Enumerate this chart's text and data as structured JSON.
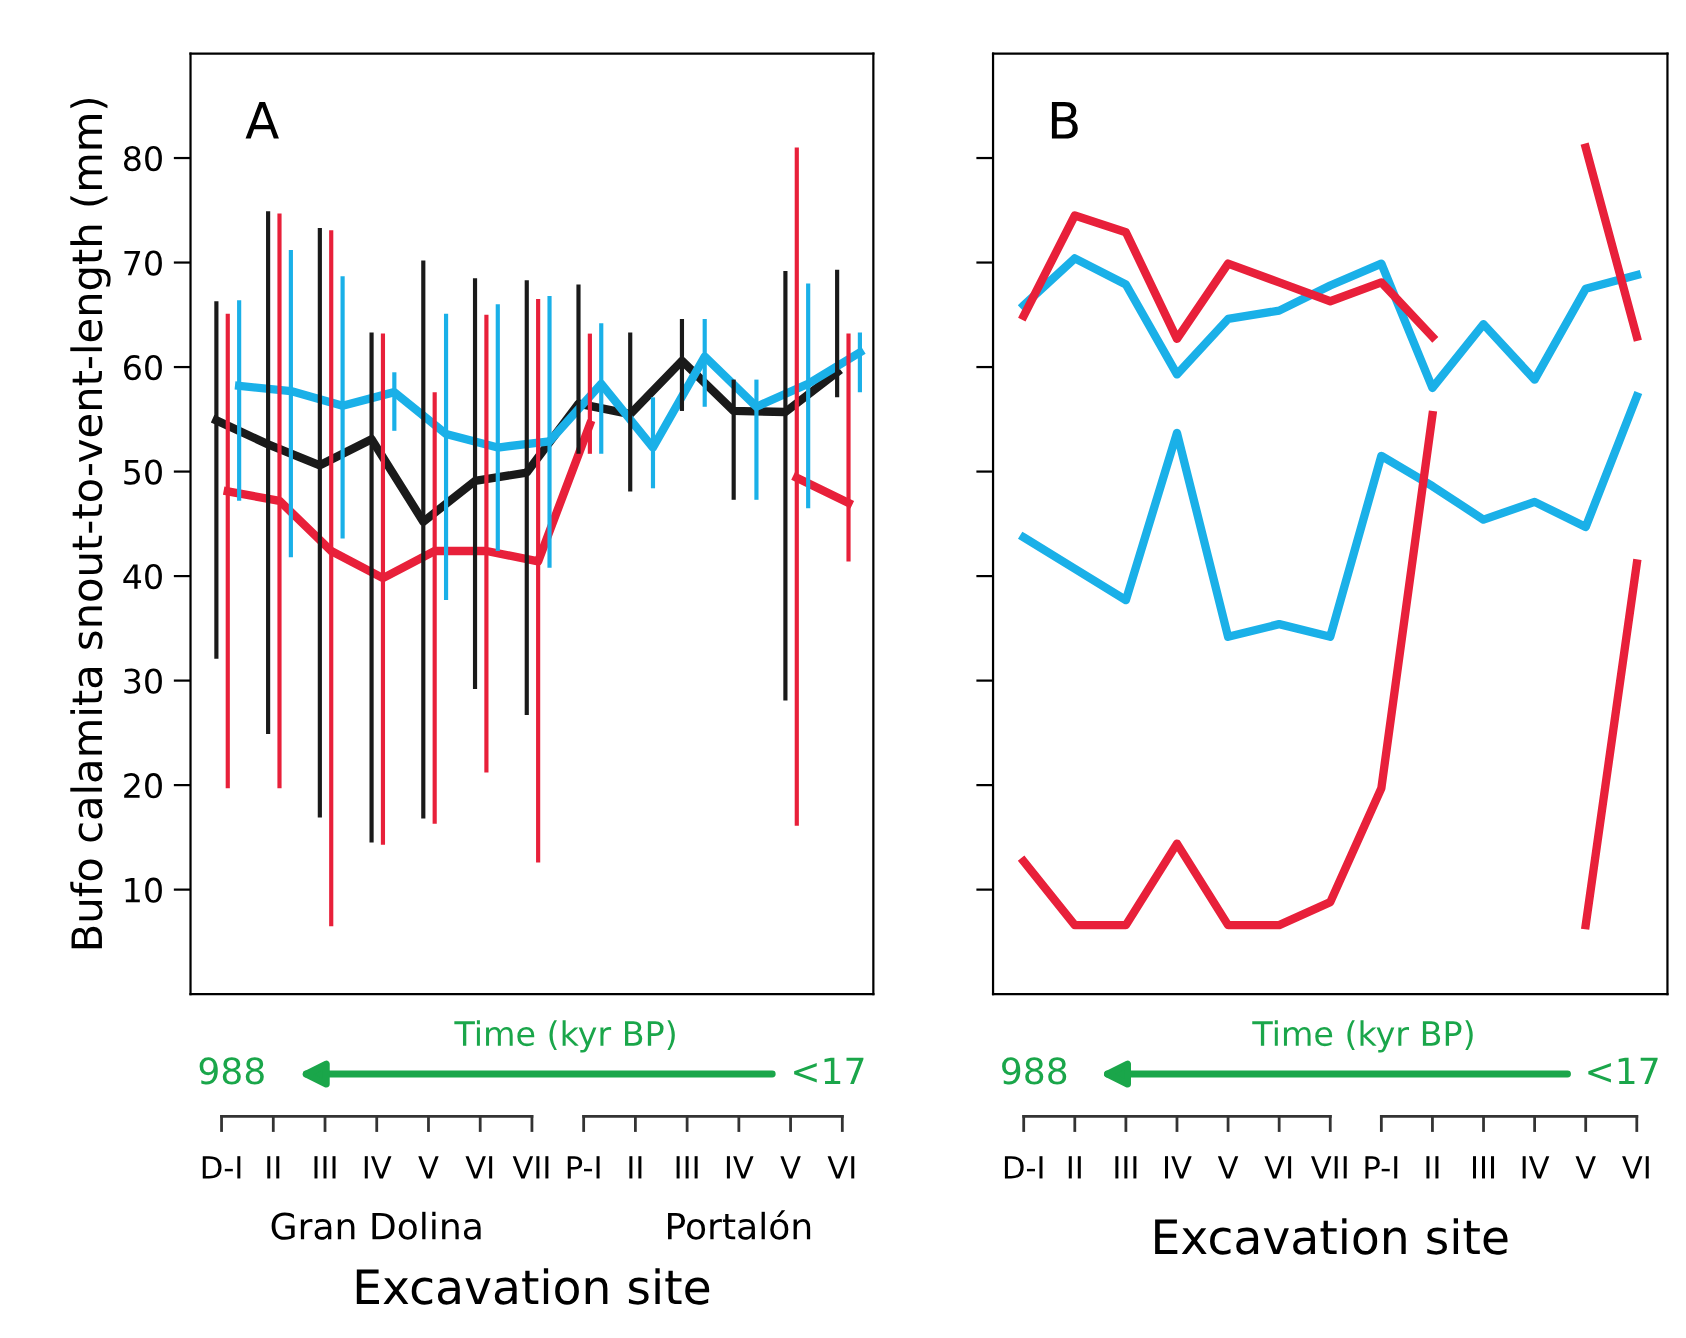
{
  "chart_data": [
    {
      "type": "line",
      "ylabel": "Bufo calamita snout-to-vent-length (mm)",
      "xlabel": "Excavation site",
      "annotations": [
        "A",
        "Time (kyr BP)",
        "988",
        "<17",
        "Gran Dolina",
        "Portalón"
      ],
      "categories": [
        "D-I",
        "II",
        "III",
        "IV",
        "V",
        "VI",
        "VII",
        "P-I",
        "II",
        "III",
        "IV",
        "V",
        "VI"
      ],
      "ylim": [
        0,
        90
      ],
      "yticks": [
        10,
        20,
        30,
        40,
        50,
        60,
        70,
        80
      ],
      "grid": false,
      "legend": false,
      "marker": "none",
      "line_style": "solid",
      "series": [
        {
          "color": "#1a1a1a",
          "values": [
            54.9,
            52.6,
            50.6,
            53.1,
            45.2,
            49.1,
            49.9,
            56.5,
            55.5,
            60.6,
            55.8,
            55.7,
            59.5
          ],
          "errors": [
            [
              32.1,
              66.3
            ],
            [
              24.9,
              74.9
            ],
            [
              16.9,
              73.3
            ],
            [
              14.5,
              63.3
            ],
            [
              16.8,
              70.2
            ],
            [
              29.2,
              68.5
            ],
            [
              26.7,
              68.3
            ],
            [
              51.7,
              67.9
            ],
            [
              48.1,
              63.3
            ],
            [
              55.8,
              64.6
            ],
            [
              47.3,
              58.8
            ],
            [
              28.1,
              69.2
            ],
            [
              57.1,
              69.3
            ]
          ]
        },
        {
          "color": "#e8203a",
          "values": [
            48.1,
            47.2,
            42.4,
            39.8,
            42.4,
            42.4,
            41.4,
            54.5,
            null,
            null,
            null,
            49.4,
            47.0
          ],
          "errors": [
            [
              19.7,
              65.1
            ],
            [
              19.7,
              74.7
            ],
            [
              6.5,
              73.1
            ],
            [
              14.3,
              63.2
            ],
            [
              16.3,
              57.6
            ],
            [
              21.2,
              65.0
            ],
            [
              12.6,
              66.5
            ],
            [
              51.7,
              63.2
            ],
            null,
            null,
            null,
            [
              16.1,
              81.0
            ],
            [
              41.4,
              63.2
            ]
          ]
        },
        {
          "color": "#1ab0e8",
          "values": [
            58.2,
            57.7,
            56.3,
            57.6,
            53.6,
            52.3,
            52.9,
            58.4,
            52.3,
            61.0,
            56.2,
            58.4,
            61.4
          ],
          "errors": [
            [
              47.2,
              66.4
            ],
            [
              41.8,
              71.2
            ],
            [
              43.6,
              68.7
            ],
            [
              53.9,
              59.5
            ],
            [
              37.7,
              65.1
            ],
            [
              42.4,
              66.0
            ],
            [
              40.8,
              66.8
            ],
            [
              51.7,
              64.2
            ],
            [
              48.4,
              57.1
            ],
            [
              56.2,
              64.6
            ],
            [
              47.3,
              58.8
            ],
            [
              46.5,
              68.0
            ],
            [
              57.6,
              63.3
            ]
          ]
        }
      ]
    },
    {
      "type": "line",
      "xlabel": "Excavation site",
      "annotations": [
        "B",
        "Time (kyr BP)",
        "988",
        "<17"
      ],
      "categories": [
        "D-I",
        "II",
        "III",
        "IV",
        "V",
        "VI",
        "VII",
        "P-I",
        "II",
        "III",
        "IV",
        "V",
        "VI"
      ],
      "ylim": [
        0,
        90
      ],
      "yticks": [
        10,
        20,
        30,
        40,
        50,
        60,
        70,
        80
      ],
      "tick_labels": "x",
      "grid": false,
      "legend": false,
      "marker": "none",
      "line_style": "solid",
      "series": [
        {
          "color": "#1ab0e8",
          "values": [
            65.9,
            70.4,
            67.9,
            59.3,
            64.6,
            65.4,
            67.8,
            69.9,
            58.0,
            64.1,
            58.8,
            67.5,
            68.8
          ]
        },
        {
          "color": "#1ab0e8",
          "values": [
            43.7,
            40.7,
            37.7,
            53.7,
            34.2,
            35.4,
            34.2,
            51.5,
            48.6,
            45.4,
            47.1,
            44.7,
            57.2
          ]
        },
        {
          "color": "#e8203a",
          "values": [
            64.9,
            74.5,
            72.9,
            62.7,
            69.9,
            68.1,
            66.3,
            68.1,
            62.9,
            null,
            null,
            81.0,
            62.9
          ]
        },
        {
          "color": "#e8203a",
          "values": [
            12.7,
            6.6,
            6.6,
            14.4,
            6.6,
            6.6,
            8.8,
            19.7,
            55.4,
            null,
            null,
            6.6,
            41.2
          ]
        }
      ]
    }
  ]
}
